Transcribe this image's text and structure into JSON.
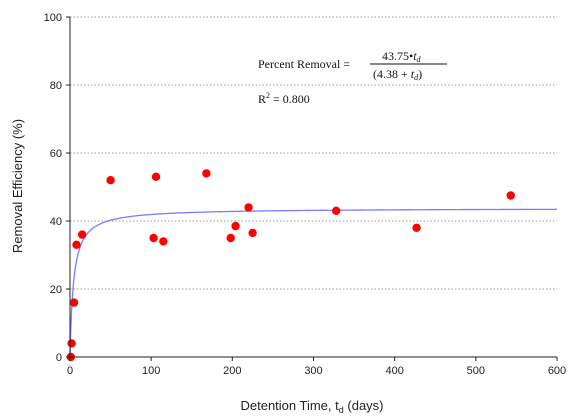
{
  "chart_data": {
    "type": "scatter",
    "xlabel": "Detention Time, t",
    "xlabel_sub": "d",
    "xlabel_units": " (days)",
    "ylabel": "Removal Efficiency (%)",
    "xlim": [
      0,
      600
    ],
    "ylim": [
      0,
      100
    ],
    "xticks": [
      0,
      100,
      200,
      300,
      400,
      500,
      600
    ],
    "yticks": [
      0,
      20,
      40,
      60,
      80,
      100
    ],
    "grid": "horizontal dotted",
    "points": [
      {
        "x": 1,
        "y": 0
      },
      {
        "x": 2,
        "y": 4
      },
      {
        "x": 5,
        "y": 16
      },
      {
        "x": 8,
        "y": 33
      },
      {
        "x": 15,
        "y": 36
      },
      {
        "x": 50,
        "y": 52
      },
      {
        "x": 103,
        "y": 35
      },
      {
        "x": 106,
        "y": 53
      },
      {
        "x": 115,
        "y": 34
      },
      {
        "x": 168,
        "y": 54
      },
      {
        "x": 198,
        "y": 35
      },
      {
        "x": 204,
        "y": 38.5
      },
      {
        "x": 220,
        "y": 44
      },
      {
        "x": 225,
        "y": 36.5
      },
      {
        "x": 328,
        "y": 43
      },
      {
        "x": 427,
        "y": 38
      },
      {
        "x": 543,
        "y": 47.5
      }
    ],
    "fit": {
      "a": 43.75,
      "b": 4.38
    },
    "annotation": {
      "lhs": "Percent Removal =",
      "numerator_value": "43.75",
      "bullet": "•",
      "var": "t",
      "var_sub": "d",
      "denominator_open": "(4.38 + ",
      "denominator_close": ")",
      "r2_prefix": "R",
      "r2_sup": "2",
      "r2_value": " = 0.800"
    },
    "colors": {
      "points": "#ff0000",
      "fit_line": "#7b7bff",
      "axis": "#222222",
      "grid": "#999999"
    }
  }
}
